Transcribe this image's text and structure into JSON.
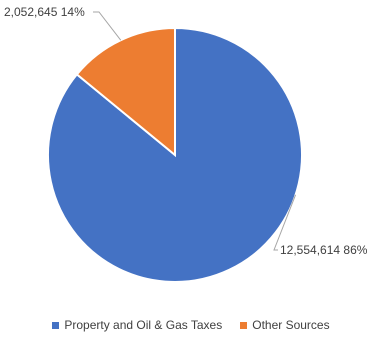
{
  "chart_data": {
    "type": "pie",
    "slices": [
      {
        "label": "Property and Oil & Gas Taxes",
        "value": 12554614,
        "value_text": "12,554,614",
        "percent_text": "86%",
        "color": "#4472C4"
      },
      {
        "label": "Other Sources",
        "value": 2052645,
        "value_text": "2,052,645",
        "percent_text": "14%",
        "color": "#ED7D31"
      }
    ],
    "start_angle_deg": 0,
    "direction": "counterclockwise-from-top-for-first-slice",
    "legend_position": "bottom"
  }
}
